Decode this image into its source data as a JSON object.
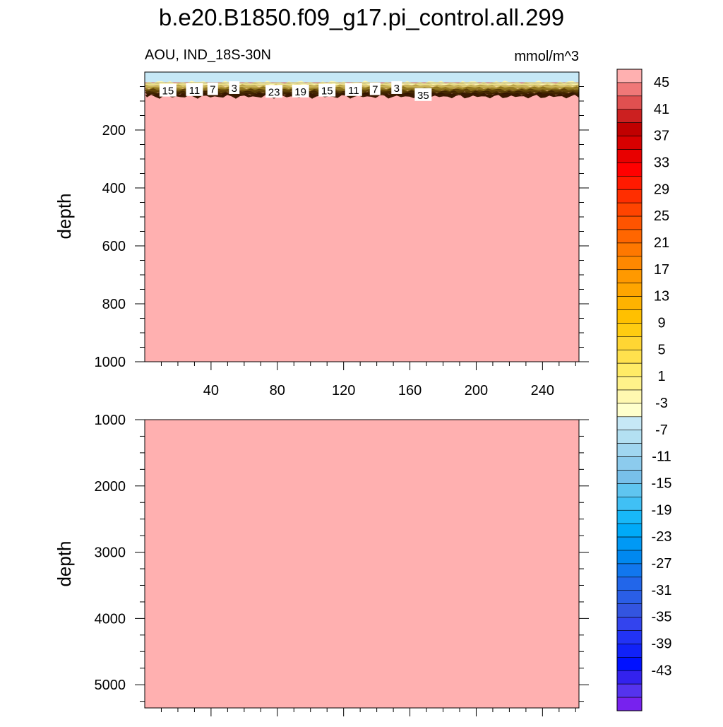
{
  "chart_data": [
    {
      "type": "heatmap",
      "title": "b.e20.B1850.f09_g17.pi_control.all.299",
      "left_subtitle": "AOU, IND_18S-30N",
      "right_subtitle": "mmol/m^3",
      "ylabel": "depth",
      "xlabel": "",
      "xlim": [
        0,
        262
      ],
      "ylim": [
        0,
        1000
      ],
      "y_inverted": true,
      "x_ticks": [
        40,
        80,
        120,
        160,
        200,
        240
      ],
      "y_ticks": [
        200,
        400,
        600,
        800,
        1000
      ],
      "surface_band": {
        "depth_top": 0,
        "depth_bottom": 35,
        "value_range": [
          -1,
          1
        ]
      },
      "gradient_zone": {
        "depth_top": 35,
        "depth_bottom": 85,
        "value_range": [
          1,
          45
        ]
      },
      "fill_value_below": 45,
      "contour_labels": [
        {
          "x": 14,
          "depth": 65,
          "value": "15"
        },
        {
          "x": 30,
          "depth": 63,
          "value": "11"
        },
        {
          "x": 41,
          "depth": 60,
          "value": "7"
        },
        {
          "x": 54,
          "depth": 56,
          "value": "3"
        },
        {
          "x": 78,
          "depth": 69,
          "value": "23"
        },
        {
          "x": 94,
          "depth": 68,
          "value": "19"
        },
        {
          "x": 110,
          "depth": 65,
          "value": "15"
        },
        {
          "x": 126,
          "depth": 63,
          "value": "11"
        },
        {
          "x": 139,
          "depth": 60,
          "value": "7"
        },
        {
          "x": 152,
          "depth": 56,
          "value": "3"
        },
        {
          "x": 168,
          "depth": 80,
          "value": "35"
        }
      ]
    },
    {
      "type": "heatmap",
      "ylabel": "depth",
      "xlabel": "",
      "xlim": [
        0,
        262
      ],
      "ylim": [
        1000,
        5350
      ],
      "y_inverted": true,
      "y_ticks": [
        1000,
        2000,
        3000,
        4000,
        5000
      ],
      "x_ticks": [
        40,
        80,
        120,
        160,
        200,
        240
      ],
      "show_x_tick_labels": false,
      "fill_value": 45
    }
  ],
  "colorbar": {
    "levels": [
      -45,
      -43,
      -41,
      -39,
      -37,
      -35,
      -33,
      -31,
      -29,
      -27,
      -25,
      -23,
      -21,
      -19,
      -17,
      -15,
      -13,
      -11,
      -9,
      -7,
      -5,
      -3,
      -1,
      1,
      3,
      5,
      7,
      9,
      11,
      13,
      15,
      17,
      19,
      21,
      23,
      25,
      27,
      29,
      31,
      33,
      35,
      37,
      39,
      41,
      43,
      45
    ],
    "labels": [
      "45",
      "41",
      "37",
      "33",
      "29",
      "25",
      "21",
      "17",
      "13",
      "9",
      "5",
      "1",
      "-3",
      "-7",
      "-11",
      "-15",
      "-19",
      "-23",
      "-27",
      "-31",
      "-35",
      "-39",
      "-43"
    ],
    "colors_top_to_bottom": [
      "#ffb0b0",
      "#f07878",
      "#e05050",
      "#cc2020",
      "#c00000",
      "#d80000",
      "#e80000",
      "#ff0000",
      "#ff1a00",
      "#ff2e00",
      "#ff4400",
      "#ff5400",
      "#ff6600",
      "#ff7800",
      "#ff8800",
      "#ff9900",
      "#ffa500",
      "#ffb300",
      "#ffc000",
      "#ffcc11",
      "#ffd633",
      "#ffe14d",
      "#ffeb66",
      "#fff28a",
      "#fff8b0",
      "#ffffcc",
      "#c6e8f6",
      "#b3e0f2",
      "#a0d6f0",
      "#8ccbed",
      "#78c0ea",
      "#5fc5f0",
      "#40c0f5",
      "#18b8f8",
      "#00aaf8",
      "#0099f5",
      "#0088f0",
      "#1177ee",
      "#2266ea",
      "#2a5ee6",
      "#3355e0",
      "#3344ee",
      "#2233f5",
      "#1122f8",
      "#0011ff",
      "#3322ee",
      "#5533ee",
      "#7722ee"
    ]
  },
  "colors": {
    "fill_below": "#ffb0b0",
    "surface_band": "#c6e8f6",
    "deep_gradient": "#3a1800"
  }
}
